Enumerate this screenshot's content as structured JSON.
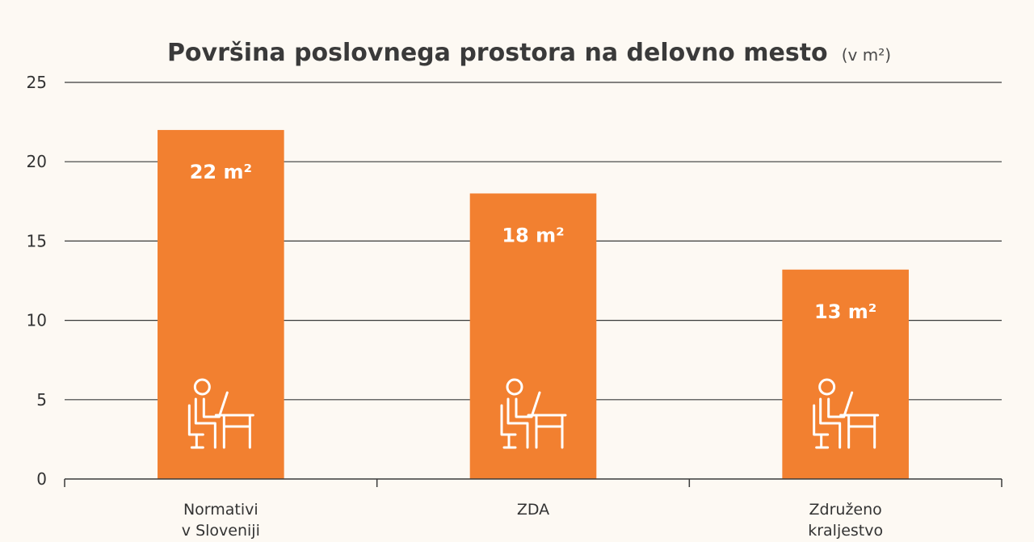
{
  "chart_data": {
    "type": "bar",
    "title": "Površina poslovnega prostora na delovno mesto",
    "title_unit": "(v m²)",
    "xlabel": "",
    "ylabel": "",
    "categories": [
      [
        "Normativi",
        "v Sloveniji"
      ],
      [
        "ZDA"
      ],
      [
        "Združeno",
        "kraljestvo"
      ]
    ],
    "values": [
      22,
      18,
      13.2
    ],
    "data_labels": [
      "22 m²",
      "18 m²",
      "13 m²"
    ],
    "ylim": [
      0,
      25
    ],
    "yticks": [
      "0",
      "5",
      "10",
      "15",
      "20",
      "25"
    ],
    "ytick_values": [
      0,
      5,
      10,
      15,
      20,
      25
    ],
    "grid": true,
    "bar_color": "#f28030",
    "bar_icon": "person-at-desk-icon"
  }
}
